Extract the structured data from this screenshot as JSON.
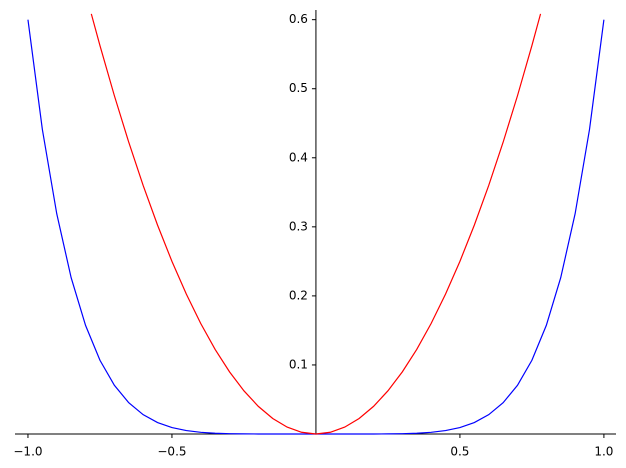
{
  "chart_data": {
    "type": "line",
    "xlim": [
      -1.045,
      1.042
    ],
    "ylim": [
      0,
      0.614
    ],
    "xticks": [
      {
        "value": -1,
        "label": "−1.0"
      },
      {
        "value": -0.5,
        "label": "−0.5"
      },
      0.5,
      {
        "value": 1,
        "label": "1.0"
      }
    ],
    "yticks": [
      0.1,
      0.2,
      0.3,
      0.4,
      0.5,
      0.6
    ],
    "series": [
      {
        "color": "#0000ff",
        "x": [
          -1,
          -0.95,
          -0.9,
          -0.85,
          -0.8,
          -0.75,
          -0.7,
          -0.65,
          -0.6,
          -0.55,
          -0.5,
          -0.45,
          -0.4,
          -0.35,
          -0.3,
          -0.25,
          -0.2,
          -0.15,
          -0.1,
          -0.05,
          0,
          0.05,
          0.1,
          0.15,
          0.2,
          0.25,
          0.3,
          0.35,
          0.4,
          0.45,
          0.5,
          0.55,
          0.6,
          0.65,
          0.7,
          0.75,
          0.8,
          0.85,
          0.9,
          0.95,
          1
        ],
        "values": [
          0.6,
          0.44106,
          0.31886,
          0.22629,
          0.15729,
          0.10679,
          0.07059,
          0.04525,
          0.02799,
          0.01661,
          0.009375,
          0.00498,
          0.00246,
          0.0011,
          0.000437,
          0.000146,
          3.84e-05,
          6.8e-06,
          6e-07,
          0,
          0,
          0,
          6e-07,
          6.8e-06,
          3.84e-05,
          0.000146,
          0.000437,
          0.0011,
          0.00246,
          0.00498,
          0.009375,
          0.01661,
          0.02799,
          0.04525,
          0.07059,
          0.10679,
          0.15729,
          0.22629,
          0.31886,
          0.44106,
          0.6
        ]
      },
      {
        "color": "#ff0000",
        "x": [
          -0.78,
          -0.75,
          -0.7,
          -0.65,
          -0.6,
          -0.55,
          -0.5,
          -0.45,
          -0.4,
          -0.35,
          -0.3,
          -0.25,
          -0.2,
          -0.15,
          -0.1,
          -0.05,
          0,
          0.05,
          0.1,
          0.15,
          0.2,
          0.25,
          0.3,
          0.35,
          0.4,
          0.45,
          0.5,
          0.55,
          0.6,
          0.65,
          0.7,
          0.75,
          0.78
        ],
        "values": [
          0.6084,
          0.5625,
          0.49,
          0.4225,
          0.36,
          0.3025,
          0.25,
          0.2025,
          0.16,
          0.1225,
          0.09,
          0.0625,
          0.04,
          0.0225,
          0.01,
          0.0025,
          0,
          0.0025,
          0.01,
          0.0225,
          0.04,
          0.0625,
          0.09,
          0.1225,
          0.16,
          0.2025,
          0.25,
          0.3025,
          0.36,
          0.4225,
          0.49,
          0.5625,
          0.6084
        ]
      }
    ]
  }
}
